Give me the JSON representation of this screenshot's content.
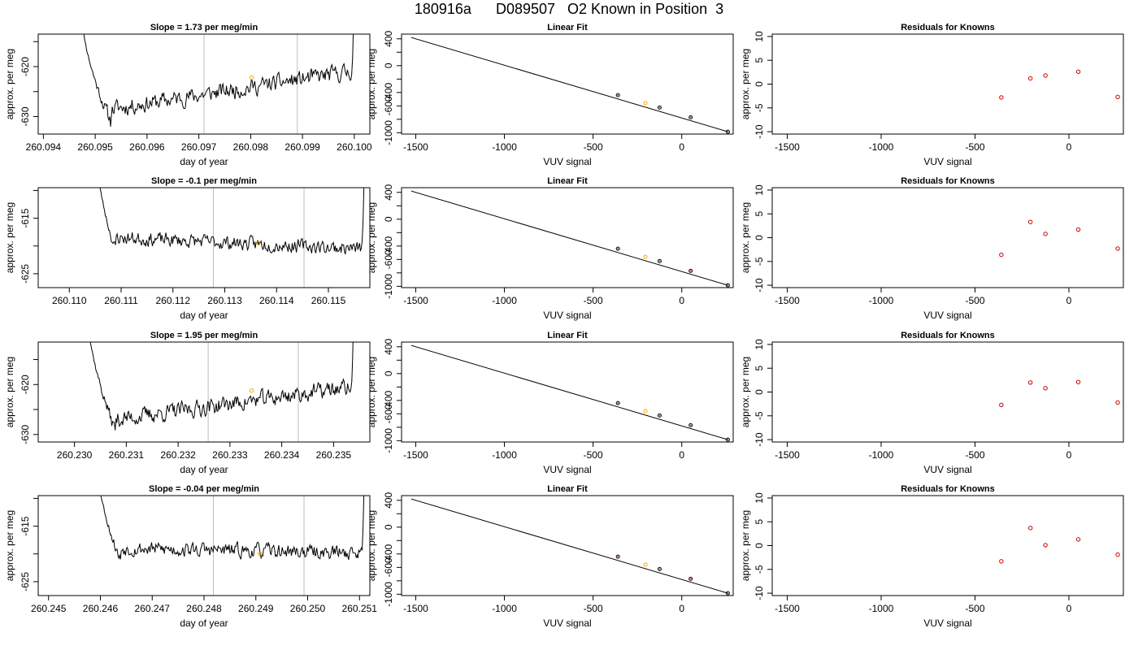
{
  "title": "180916a      D089507   O2 Known in Position  3",
  "axis_labels": {
    "time_x": "day of year",
    "fit_x": "VUV signal",
    "y": "approx. per meg"
  },
  "panel_titles": {
    "fit": "Linear Fit",
    "residuals": "Residuals for Knowns"
  },
  "colors": {
    "trace": "#000000",
    "marker_orange": "#ffa500",
    "marker_red": "#cc0000",
    "vline": "#bebebe",
    "axis": "#000000"
  },
  "fit_common": {
    "xlim": [
      -1580,
      290
    ],
    "ylim": [
      -1020,
      470
    ],
    "xticks": [
      -1500,
      -1000,
      -500,
      0
    ],
    "xtick_labels": [
      "-1500",
      "-1000",
      "-500",
      "0"
    ],
    "yticks": [
      -1000,
      -800,
      -600,
      -400,
      -200,
      0,
      200,
      400
    ],
    "ytick_labels": [
      "-1000",
      "",
      "-600",
      "-400",
      "",
      "0",
      "",
      "400"
    ],
    "line": [
      [
        -1525,
        420
      ],
      [
        260,
        -985
      ]
    ],
    "points": [
      {
        "x": -360,
        "y": -440,
        "color": "black"
      },
      {
        "x": -205,
        "y": -560,
        "color": "orange"
      },
      {
        "x": -125,
        "y": -625,
        "color": "black"
      },
      {
        "x": 50,
        "y": -770,
        "color": "black"
      },
      {
        "x": 260,
        "y": -985,
        "color": "black"
      }
    ]
  },
  "res_common": {
    "xlim": [
      -1580,
      290
    ],
    "ylim": [
      -10.5,
      10.5
    ],
    "xticks": [
      -1500,
      -1000,
      -500,
      0
    ],
    "xtick_labels": [
      "-1500",
      "-1000",
      "-500",
      "0"
    ],
    "yticks": [
      -10,
      -5,
      0,
      5,
      10
    ],
    "ytick_labels": [
      "-10",
      "-5",
      "0",
      "5",
      "10"
    ],
    "x": [
      -360,
      -205,
      -125,
      50,
      260
    ]
  },
  "rows": [
    {
      "slope_label": "Slope =  1.73  per meg/min",
      "time": {
        "xlim": [
          260.0939,
          260.1003
        ],
        "xticks": [
          260.094,
          260.095,
          260.096,
          260.097,
          260.098,
          260.099,
          260.1
        ],
        "xtick_labels": [
          "260.094",
          "260.095",
          "260.096",
          "260.097",
          "260.098",
          "260.099",
          "260.100"
        ],
        "ylim": [
          -633.5,
          -613.5
        ],
        "yticks": [
          -630,
          -625,
          -620,
          -615
        ],
        "ytick_labels": [
          "-630",
          "",
          "-620",
          ""
        ],
        "vlines": [
          260.0971,
          260.0989
        ],
        "trace_x0": 260.0947,
        "trace_x1": 260.1,
        "start_high": -605,
        "bottom": -631,
        "end_mean": -621,
        "dip_end": 260.0953,
        "noise": 2.6,
        "seed": 11,
        "marker": {
          "x": 260.09802,
          "y": -622.2
        }
      },
      "residuals": [
        -2.8,
        1.2,
        1.8,
        2.6,
        -2.7
      ]
    },
    {
      "slope_label": "Slope =  -0.1  per meg/min",
      "time": {
        "xlim": [
          260.1094,
          260.1158
        ],
        "xticks": [
          260.11,
          260.111,
          260.112,
          260.113,
          260.114,
          260.115
        ],
        "xtick_labels": [
          "260.110",
          "260.111",
          "260.112",
          "260.113",
          "260.114",
          "260.115"
        ],
        "ylim": [
          -627.5,
          -609.5
        ],
        "yticks": [
          -625,
          -620,
          -615,
          -610
        ],
        "ytick_labels": [
          "-625",
          "",
          "-615",
          ""
        ],
        "vlines": [
          260.11278,
          260.11453
        ],
        "trace_x0": 260.1105,
        "trace_x1": 260.1157,
        "start_high": -600,
        "bottom": -621,
        "end_mean": -620.5,
        "dip_end": 260.1109,
        "noise": 1.9,
        "seed": 23,
        "marker": {
          "x": 260.11365,
          "y": -619.5
        }
      },
      "residuals": [
        -3.6,
        3.3,
        0.8,
        1.7,
        -2.3
      ]
    },
    {
      "slope_label": "Slope =  1.95  per meg/min",
      "time": {
        "xlim": [
          260.2293,
          260.2357
        ],
        "xticks": [
          260.23,
          260.231,
          260.232,
          260.233,
          260.234,
          260.235
        ],
        "xtick_labels": [
          "260.230",
          "260.231",
          "260.232",
          "260.233",
          "260.234",
          "260.235"
        ],
        "ylim": [
          -631.5,
          -611.5
        ],
        "yticks": [
          -630,
          -625,
          -620,
          -615
        ],
        "ytick_labels": [
          "-630",
          "",
          "-620",
          ""
        ],
        "vlines": [
          260.23258,
          260.23432
        ],
        "trace_x0": 260.2302,
        "trace_x1": 260.2354,
        "start_high": -600,
        "bottom": -629.5,
        "end_mean": -620.5,
        "dip_end": 260.2308,
        "noise": 2.6,
        "seed": 37,
        "marker": {
          "x": 260.23342,
          "y": -621.2
        }
      },
      "residuals": [
        -2.7,
        2.0,
        0.8,
        2.1,
        -2.2
      ]
    },
    {
      "slope_label": "Slope =  -0.04  per meg/min",
      "time": {
        "xlim": [
          260.2448,
          260.2512
        ],
        "xticks": [
          260.245,
          260.246,
          260.247,
          260.248,
          260.249,
          260.25,
          260.251
        ],
        "xtick_labels": [
          "260.245",
          "260.246",
          "260.247",
          "260.248",
          "260.249",
          "260.250",
          "260.251"
        ],
        "ylim": [
          -627.5,
          -609.5
        ],
        "yticks": [
          -625,
          -620,
          -615,
          -610
        ],
        "ytick_labels": [
          "-625",
          "",
          "-615",
          ""
        ],
        "vlines": [
          260.24818,
          260.24993
        ],
        "trace_x0": 260.2459,
        "trace_x1": 260.2511,
        "start_high": -600,
        "bottom": -621.5,
        "end_mean": -619.8,
        "dip_end": 260.2464,
        "noise": 2.0,
        "seed": 53,
        "marker": {
          "x": 260.24908,
          "y": -620.0
        }
      },
      "residuals": [
        -3.3,
        3.7,
        0.1,
        1.3,
        -1.9
      ]
    }
  ]
}
